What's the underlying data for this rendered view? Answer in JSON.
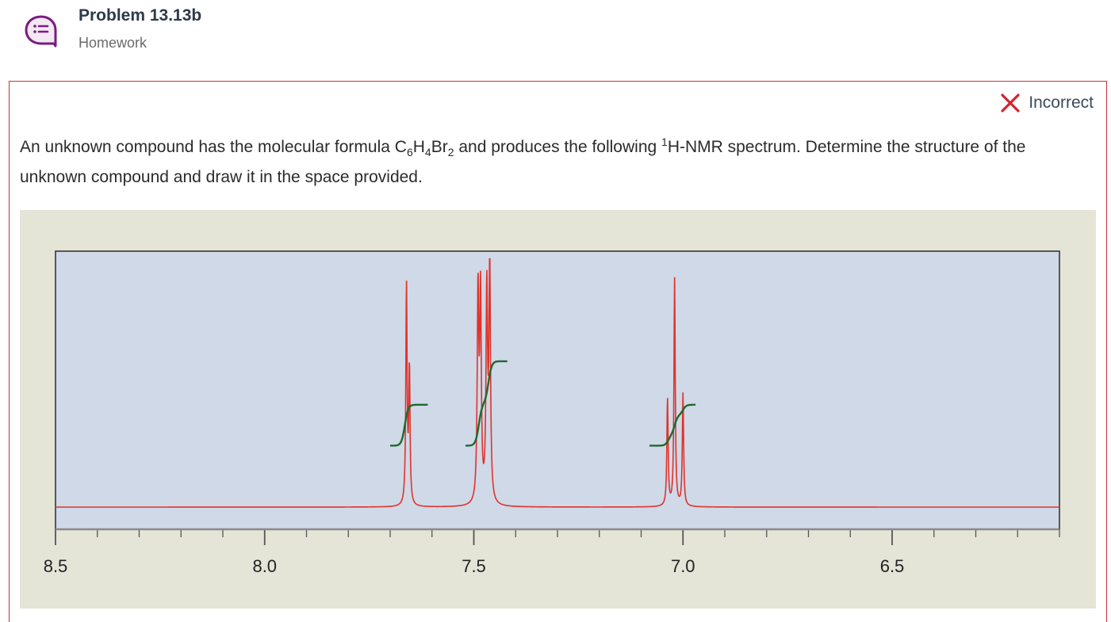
{
  "header": {
    "title": "Problem 13.13b",
    "subtitle": "Homework",
    "icon": "chat-list-icon"
  },
  "status": {
    "icon": "close-x-icon",
    "label": "Incorrect",
    "color": "#d0252f"
  },
  "question": {
    "part1": "An unknown compound has the molecular formula C",
    "sub1": "6",
    "part2": "H",
    "sub2": "4",
    "part3": "Br",
    "sub3": "2",
    "part4": " and produces the following ",
    "sup1": "1",
    "part5": "H-NMR spectrum. Determine the structure of the unknown compound and draw it in the space provided."
  },
  "colors": {
    "accent_purple": "#7a1c7e",
    "plot_background": "#cfd9e8",
    "figure_background": "#e4e4d7",
    "spectrum_line": "#e0332b",
    "integral_line": "#1d6a2f",
    "border_red": "#c8323c"
  },
  "chart_data": {
    "type": "line",
    "title": "",
    "xlabel": "",
    "ylabel": "",
    "x_reversed": true,
    "xlim": [
      8.5,
      6.1
    ],
    "x_ticks": [
      8.5,
      8.0,
      7.5,
      7.0,
      6.5
    ],
    "x_tick_labels": [
      "8.5",
      "8.0",
      "7.5",
      "7.0",
      "6.5"
    ],
    "minor_tick_step": 0.1,
    "peaks": [
      {
        "ppm": 7.661,
        "height": 0.86,
        "width": 0.0018
      },
      {
        "ppm": 7.654,
        "height": 0.53,
        "width": 0.0018
      },
      {
        "ppm": 7.49,
        "height": 0.82,
        "width": 0.0022
      },
      {
        "ppm": 7.484,
        "height": 0.8,
        "width": 0.0022
      },
      {
        "ppm": 7.469,
        "height": 0.82,
        "width": 0.0022
      },
      {
        "ppm": 7.462,
        "height": 0.93,
        "width": 0.0022
      },
      {
        "ppm": 7.037,
        "height": 0.42,
        "width": 0.0018
      },
      {
        "ppm": 7.02,
        "height": 0.89,
        "width": 0.0018
      },
      {
        "ppm": 7.0,
        "height": 0.44,
        "width": 0.0018
      }
    ],
    "integrals": [
      {
        "from": 7.7,
        "to": 7.61,
        "steps": [
          [
            7.665,
            1
          ]
        ],
        "start": 0.24,
        "height": 0.16
      },
      {
        "from": 7.52,
        "to": 7.42,
        "steps": [
          [
            7.488,
            1
          ],
          [
            7.465,
            1
          ]
        ],
        "start": 0.24,
        "height": 0.33
      },
      {
        "from": 7.08,
        "to": 6.97,
        "steps": [
          [
            7.035,
            0.5
          ],
          [
            7.02,
            1
          ],
          [
            7.0,
            0.5
          ]
        ],
        "start": 0.24,
        "height": 0.16
      }
    ]
  }
}
